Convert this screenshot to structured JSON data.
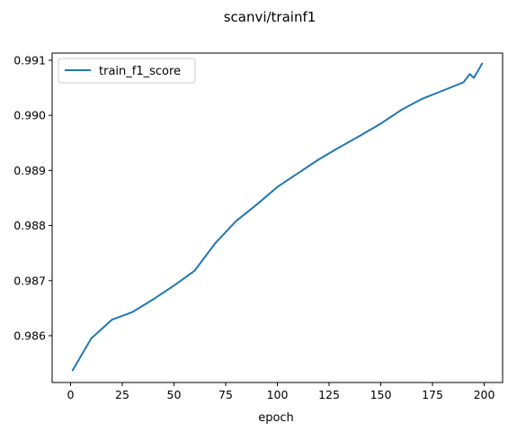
{
  "chart_data": {
    "type": "line",
    "title": "scanvi/trainf1",
    "xlabel": "epoch",
    "ylabel": "",
    "xlim": [
      -8.9,
      208.9
    ],
    "ylim": [
      0.98515,
      0.99113
    ],
    "xticks": [
      0,
      25,
      50,
      75,
      100,
      125,
      150,
      175,
      200
    ],
    "xtick_labels": [
      "0",
      "25",
      "50",
      "75",
      "100",
      "125",
      "150",
      "175",
      "200"
    ],
    "yticks": [
      0.986,
      0.987,
      0.988,
      0.989,
      0.99,
      0.991
    ],
    "ytick_labels": [
      "0.986",
      "0.987",
      "0.988",
      "0.989",
      "0.990",
      "0.991"
    ],
    "grid": false,
    "legend_position": "upper-left",
    "series": [
      {
        "name": "train_f1_score",
        "color": "#1f77b4",
        "x": [
          1,
          10,
          20,
          30,
          40,
          50,
          60,
          70,
          80,
          90,
          100,
          110,
          120,
          130,
          140,
          150,
          160,
          170,
          180,
          190,
          193,
          195,
          199
        ],
        "y": [
          0.98537,
          0.98595,
          0.98629,
          0.98643,
          0.98666,
          0.98691,
          0.98718,
          0.98768,
          0.98808,
          0.98838,
          0.9887,
          0.98895,
          0.9892,
          0.98942,
          0.98963,
          0.98985,
          0.9901,
          0.9903,
          0.99045,
          0.9906,
          0.99075,
          0.99068,
          0.99094
        ]
      }
    ]
  }
}
